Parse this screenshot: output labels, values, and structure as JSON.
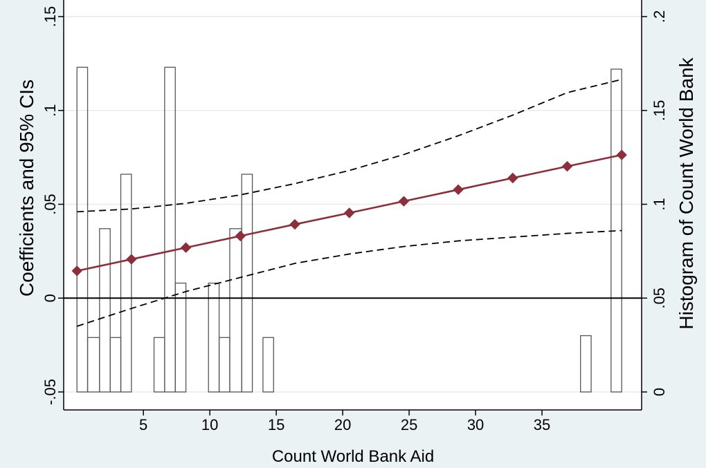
{
  "chart_data": {
    "type": "line",
    "title": "",
    "xlabel": "Count World Bank Aid",
    "ylabel": "Coefficients and 95% CIs",
    "ylabel_right": "Histogram of Count World Bank",
    "xlim": [
      -1,
      42.5
    ],
    "ylim": [
      -0.05,
      0.15
    ],
    "ylim_right": [
      0,
      0.2
    ],
    "grid": "horizontal",
    "zero_line": 0,
    "x_ticks": [
      5,
      10,
      15,
      20,
      25,
      30,
      35
    ],
    "x_tick_labels": [
      "5",
      "10",
      "15",
      "20",
      "25",
      "30",
      "35"
    ],
    "y_ticks": [
      -0.05,
      0,
      0.05,
      0.1,
      0.15
    ],
    "y_tick_labels": [
      "-.05",
      "0",
      ".05",
      ".1",
      ".15"
    ],
    "y2_ticks": [
      0,
      0.05,
      0.1,
      0.15,
      0.2
    ],
    "y2_tick_labels": [
      "0",
      ".05",
      ".1",
      ".15",
      ".2"
    ],
    "series": [
      {
        "role": "coefficient",
        "color": "#8b2f3a",
        "marker": "diamond",
        "x": [
          0,
          4.1,
          8.2,
          12.3,
          16.4,
          20.5,
          24.6,
          28.7,
          32.8,
          36.9,
          41
        ],
        "y": [
          0.0145,
          0.0207,
          0.0269,
          0.0331,
          0.0393,
          0.0454,
          0.0516,
          0.0578,
          0.064,
          0.0702,
          0.0763
        ]
      },
      {
        "role": "ci-upper",
        "color": "#000000",
        "style": "dashed",
        "x": [
          0,
          4.1,
          8.2,
          12.3,
          16.4,
          20.5,
          24.6,
          28.7,
          32.8,
          36.9,
          41
        ],
        "y": [
          0.046,
          0.0475,
          0.0505,
          0.055,
          0.061,
          0.068,
          0.0765,
          0.0865,
          0.0975,
          0.1095,
          0.1165
        ]
      },
      {
        "role": "ci-lower",
        "color": "#000000",
        "style": "dashed",
        "x": [
          0,
          4.1,
          8.2,
          12.3,
          16.4,
          20.5,
          24.6,
          28.7,
          32.8,
          36.9,
          41
        ],
        "y": [
          -0.015,
          -0.0055,
          0.0035,
          0.011,
          0.0185,
          0.0235,
          0.0275,
          0.0305,
          0.0325,
          0.0345,
          0.036
        ]
      }
    ],
    "histogram": {
      "axis": "right",
      "color": "#555555",
      "bins": [
        {
          "x0": 0,
          "x1": 0.8,
          "value": 0.173
        },
        {
          "x0": 0.8,
          "x1": 1.7,
          "value": 0.029
        },
        {
          "x0": 1.7,
          "x1": 2.5,
          "value": 0.087
        },
        {
          "x0": 2.5,
          "x1": 3.3,
          "value": 0.029
        },
        {
          "x0": 3.3,
          "x1": 4.1,
          "value": 0.116
        },
        {
          "x0": 5.8,
          "x1": 6.6,
          "value": 0.029
        },
        {
          "x0": 6.6,
          "x1": 7.4,
          "value": 0.173
        },
        {
          "x0": 7.4,
          "x1": 8.2,
          "value": 0.058
        },
        {
          "x0": 9.9,
          "x1": 10.7,
          "value": 0.058
        },
        {
          "x0": 10.7,
          "x1": 11.5,
          "value": 0.029
        },
        {
          "x0": 11.5,
          "x1": 12.4,
          "value": 0.087
        },
        {
          "x0": 12.4,
          "x1": 13.2,
          "value": 0.116
        },
        {
          "x0": 14.0,
          "x1": 14.8,
          "value": 0.029
        },
        {
          "x0": 37.9,
          "x1": 38.7,
          "value": 0.03
        },
        {
          "x0": 40.2,
          "x1": 41.0,
          "value": 0.172
        }
      ]
    }
  }
}
